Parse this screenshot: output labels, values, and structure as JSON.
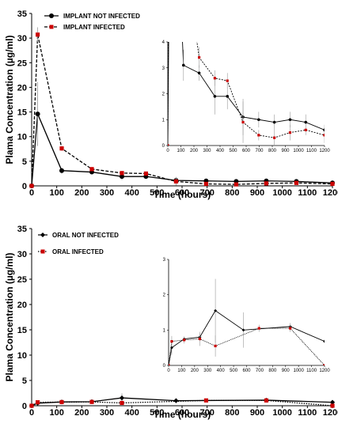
{
  "chart_data": [
    {
      "type": "line",
      "xlabel": "Time (hours)",
      "ylabel": "Plama Concentration (µg/ml)",
      "xlim": [
        0,
        1200
      ],
      "ylim": [
        0,
        35
      ],
      "xticks": [
        "0",
        "100",
        "200",
        "300",
        "400",
        "500",
        "600",
        "700",
        "800",
        "900",
        "1000",
        "1100",
        "1200"
      ],
      "yticks": [
        "0",
        "5",
        "10",
        "15",
        "20",
        "25",
        "30",
        "35"
      ],
      "legend_position": "top-left",
      "series": [
        {
          "name": "IMPLANT NOT INFECTED",
          "color": "#000000",
          "style": "solid",
          "marker": "circle",
          "x": [
            0,
            24,
            120,
            240,
            360,
            456,
            576,
            696,
            816,
            936,
            1056,
            1200
          ],
          "y": [
            0,
            14.6,
            3.1,
            2.8,
            1.9,
            1.9,
            1.1,
            1.0,
            0.9,
            1.0,
            0.9,
            0.6
          ],
          "err": [
            0,
            6.5,
            0.6,
            0.3,
            0.7,
            0.5,
            0.7,
            0.3,
            0.3,
            0.3,
            0.3,
            0.2
          ]
        },
        {
          "name": "IMPLANT  INFECTED",
          "color": "#cc0000",
          "style": "dashed",
          "marker": "square",
          "x": [
            0,
            24,
            120,
            240,
            360,
            456,
            576,
            696,
            816,
            936,
            1056,
            1200
          ],
          "y": [
            0,
            30.7,
            7.6,
            3.4,
            2.6,
            2.5,
            0.9,
            0.4,
            0.3,
            0.5,
            0.6,
            0.4
          ],
          "err": [
            0,
            1.5,
            0.5,
            0.4,
            0.3,
            0.3,
            0.8,
            0.2,
            0.3,
            0.3,
            0.2,
            0.3
          ]
        }
      ],
      "inset": {
        "xlim": [
          0,
          1200
        ],
        "ylim": [
          0,
          4
        ],
        "xticks": [
          "0",
          "100",
          "200",
          "300",
          "400",
          "500",
          "600",
          "700",
          "800",
          "900",
          "1000",
          "1100",
          "1200"
        ],
        "yticks": [
          "0",
          "1",
          "2",
          "3",
          "4"
        ]
      }
    },
    {
      "type": "line",
      "xlabel": "Time (hours)",
      "ylabel": "Plama Concentration (µg/ml)",
      "xlim": [
        0,
        1200
      ],
      "ylim": [
        0,
        35
      ],
      "xticks": [
        "0",
        "100",
        "200",
        "300",
        "400",
        "500",
        "600",
        "700",
        "800",
        "900",
        "1000",
        "1100",
        "1200"
      ],
      "yticks": [
        "0",
        "5",
        "10",
        "15",
        "20",
        "25",
        "30",
        "35"
      ],
      "legend_position": "top-left",
      "series": [
        {
          "name": "ORAL NOT INFECTED",
          "color": "#000000",
          "style": "solid",
          "marker": "diamond",
          "x": [
            0,
            24,
            120,
            240,
            360,
            576,
            936,
            1200
          ],
          "y": [
            0,
            0.5,
            0.75,
            0.8,
            1.55,
            1.0,
            1.1,
            0.68
          ],
          "err": [
            0,
            0.2,
            0.05,
            0.1,
            0.9,
            0.5,
            0.1,
            0.05
          ]
        },
        {
          "name": "ORAL  INFECTED",
          "color": "#cc0000",
          "style": "dotted",
          "marker": "square",
          "x": [
            0,
            24,
            120,
            240,
            360,
            696,
            936,
            1200
          ],
          "y": [
            0,
            0.68,
            0.72,
            0.75,
            0.55,
            1.05,
            1.05,
            0.0
          ],
          "err": [
            0,
            0.15,
            0.1,
            0.2,
            0.3,
            0.1,
            0.1,
            0
          ]
        }
      ],
      "inset": {
        "xlim": [
          0,
          1200
        ],
        "ylim": [
          0,
          3
        ],
        "xticks": [
          "0",
          "100",
          "200",
          "300",
          "400",
          "500",
          "600",
          "700",
          "800",
          "900",
          "1000",
          "1100",
          "1200"
        ],
        "yticks": [
          "0",
          "1",
          "2",
          "3"
        ]
      }
    }
  ]
}
